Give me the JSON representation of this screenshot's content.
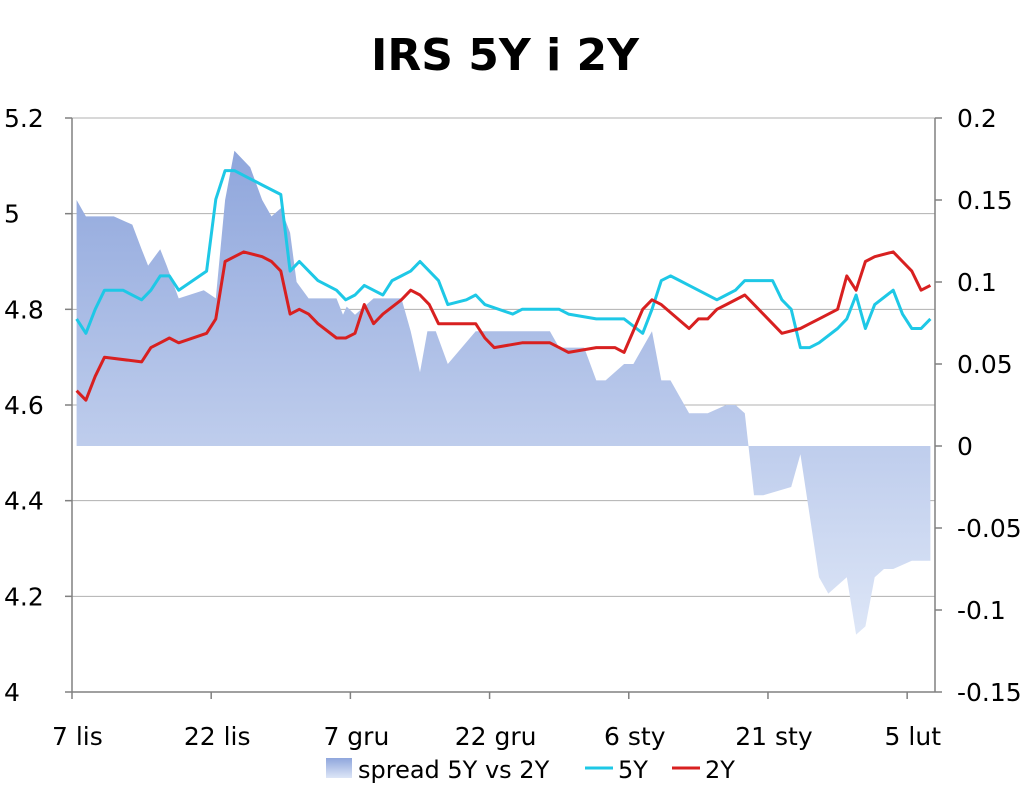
{
  "chart_data": {
    "title": "IRS 5Y i 2Y",
    "type": "line",
    "x_ticks": [
      "7 lis",
      "22 lis",
      "7 gru",
      "22 gru",
      "6 sty",
      "21 sty",
      "5 lut"
    ],
    "x_range_days": [
      0,
      93
    ],
    "y_left": {
      "min": 4,
      "max": 5.2,
      "ticks": [
        "4",
        "4.2",
        "4.4",
        "4.6",
        "4.8",
        "5",
        "5.2"
      ]
    },
    "y_right": {
      "min": -0.15,
      "max": 0.2,
      "ticks": [
        "-0.15",
        "-0.1",
        "-0.05",
        "0",
        "0.05",
        "0.1",
        "0.15",
        "0.2"
      ]
    },
    "grid": true,
    "legend_position": "bottom",
    "series": [
      {
        "name": "spread 5Y vs 2Y",
        "kind": "area",
        "axis": "right",
        "color": "#9fb2e0",
        "x": [
          0.5,
          1.5,
          2.5,
          4.5,
          6.5,
          7.5,
          8.2,
          9.5,
          10.2,
          11.5,
          14.2,
          15.5,
          16.5,
          17.5,
          19.2,
          20.5,
          21.5,
          22.5,
          23.5,
          24.2,
          25.5,
          28.5,
          29.2,
          29.6,
          30.5,
          32.5,
          35.5,
          36.5,
          37.5,
          38.3,
          39.2,
          40.5,
          43.5,
          51.5,
          52.5,
          53.5,
          55.2,
          56.5,
          57.5,
          59.5,
          60.5,
          62.5,
          63.5,
          64.5,
          66.5,
          68.5,
          70.5,
          71.5,
          72.5,
          73.5,
          74.5,
          77.5,
          78.5,
          80.5,
          81.5,
          83.5,
          84.5,
          85.5,
          86.5,
          87.5,
          88.5,
          90.5,
          92.5
        ],
        "values": [
          0.15,
          0.14,
          0.14,
          0.14,
          0.135,
          0.12,
          0.11,
          0.12,
          0.11,
          0.09,
          0.095,
          0.09,
          0.15,
          0.18,
          0.17,
          0.15,
          0.14,
          0.145,
          0.13,
          0.1,
          0.09,
          0.09,
          0.08,
          0.085,
          0.08,
          0.09,
          0.09,
          0.07,
          0.045,
          0.07,
          0.07,
          0.05,
          0.07,
          0.07,
          0.06,
          0.06,
          0.06,
          0.04,
          0.04,
          0.05,
          0.05,
          0.07,
          0.04,
          0.04,
          0.02,
          0.02,
          0.025,
          0.025,
          0.02,
          -0.03,
          -0.03,
          -0.025,
          -0.005,
          -0.08,
          -0.09,
          -0.08,
          -0.115,
          -0.11,
          -0.08,
          -0.075,
          -0.075,
          -0.07,
          -0.07
        ]
      },
      {
        "name": "5Y",
        "kind": "line",
        "axis": "left",
        "color": "#1ec8e6",
        "x": [
          0.5,
          1.5,
          2.5,
          3.5,
          5.5,
          7.5,
          8.5,
          9.5,
          10.5,
          11.5,
          14.5,
          15.5,
          16.5,
          17.5,
          18.5,
          20.5,
          22.5,
          23.5,
          24.5,
          25.5,
          26.5,
          28.5,
          29.5,
          30.5,
          31.5,
          33.5,
          34.5,
          35.5,
          36.5,
          37.5,
          39.5,
          40.5,
          42.5,
          43.5,
          44.5,
          47.5,
          48.5,
          49.5,
          51.5,
          52.5,
          53.5,
          56.5,
          57.5,
          58.5,
          59.5,
          61.5,
          62.5,
          63.5,
          64.5,
          65.5,
          66.5,
          69.5,
          70.5,
          71.5,
          72.5,
          74.5,
          75.5,
          76.5,
          77.5,
          78.5,
          79.5,
          80.5,
          82.5,
          83.5,
          84.5,
          85.5,
          86.5,
          88.5,
          89.5,
          90.5,
          91.5,
          92.5
        ],
        "values": [
          4.78,
          4.75,
          4.8,
          4.84,
          4.84,
          4.82,
          4.84,
          4.87,
          4.87,
          4.84,
          4.88,
          5.03,
          5.09,
          5.09,
          5.08,
          5.06,
          5.04,
          4.88,
          4.9,
          4.88,
          4.86,
          4.84,
          4.82,
          4.83,
          4.85,
          4.83,
          4.86,
          4.87,
          4.88,
          4.9,
          4.86,
          4.81,
          4.82,
          4.83,
          4.81,
          4.79,
          4.8,
          4.8,
          4.8,
          4.8,
          4.79,
          4.78,
          4.78,
          4.78,
          4.78,
          4.75,
          4.8,
          4.86,
          4.87,
          4.86,
          4.85,
          4.82,
          4.83,
          4.84,
          4.86,
          4.86,
          4.86,
          4.82,
          4.8,
          4.72,
          4.72,
          4.73,
          4.76,
          4.78,
          4.83,
          4.76,
          4.81,
          4.84,
          4.79,
          4.76,
          4.76,
          4.78
        ]
      },
      {
        "name": "2Y",
        "kind": "line",
        "axis": "left",
        "color": "#d82020",
        "x": [
          0.5,
          1.5,
          2.5,
          3.5,
          7.5,
          8.5,
          9.5,
          10.5,
          11.5,
          14.5,
          15.5,
          16.5,
          17.5,
          18.5,
          20.5,
          21.5,
          22.5,
          23.5,
          24.5,
          25.5,
          26.5,
          28.5,
          29.5,
          30.5,
          31.5,
          32.5,
          33.5,
          35.5,
          36.5,
          37.5,
          38.5,
          39.5,
          40.5,
          43.5,
          44.5,
          45.5,
          48.5,
          49.5,
          51.5,
          52.5,
          53.5,
          56.5,
          57.5,
          58.5,
          59.5,
          61.5,
          62.5,
          63.5,
          66.5,
          67.5,
          68.5,
          69.5,
          70.5,
          72.5,
          74.5,
          75.5,
          76.5,
          78.5,
          79.5,
          80.5,
          82.5,
          83.5,
          84.5,
          85.5,
          86.5,
          88.5,
          89.5,
          90.5,
          91.5,
          92.5
        ],
        "values": [
          4.63,
          4.61,
          4.66,
          4.7,
          4.69,
          4.72,
          4.73,
          4.74,
          4.73,
          4.75,
          4.78,
          4.9,
          4.91,
          4.92,
          4.91,
          4.9,
          4.88,
          4.79,
          4.8,
          4.79,
          4.77,
          4.74,
          4.74,
          4.75,
          4.81,
          4.77,
          4.79,
          4.82,
          4.84,
          4.83,
          4.81,
          4.77,
          4.77,
          4.77,
          4.74,
          4.72,
          4.73,
          4.73,
          4.73,
          4.72,
          4.71,
          4.72,
          4.72,
          4.72,
          4.71,
          4.8,
          4.82,
          4.81,
          4.76,
          4.78,
          4.78,
          4.8,
          4.81,
          4.83,
          4.79,
          4.77,
          4.75,
          4.76,
          4.77,
          4.78,
          4.8,
          4.87,
          4.84,
          4.9,
          4.91,
          4.92,
          4.9,
          4.88,
          4.84,
          4.85
        ]
      }
    ]
  }
}
